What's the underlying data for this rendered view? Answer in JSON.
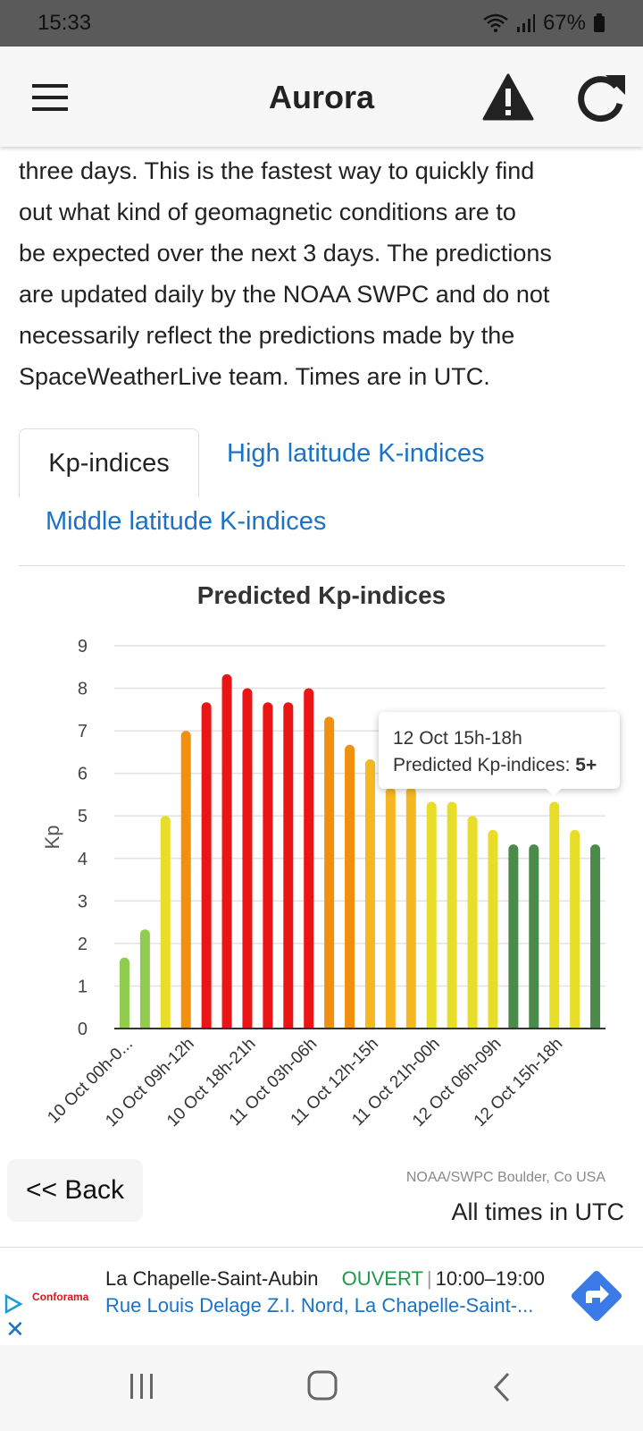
{
  "status_bar": {
    "time": "15:33",
    "battery": "67%"
  },
  "app_bar": {
    "title": "Aurora"
  },
  "intro": {
    "lines": [
      "three days. This is the fastest way to quickly find",
      "out what kind of geomagnetic conditions are to",
      "be expected over the next 3 days. The predictions",
      "are updated daily by the NOAA SWPC and do not",
      "necessarily reflect the predictions made by the",
      "SpaceWeatherLive team. Times are in UTC."
    ]
  },
  "tabs": [
    {
      "label": "Kp-indices"
    },
    {
      "label": "High latitude K-indices"
    },
    {
      "label": "Middle latitude K-indices"
    }
  ],
  "chart_data": {
    "type": "bar",
    "title": "Predicted Kp-indices",
    "ylabel": "Kp",
    "xlabel": "",
    "ylim": [
      0,
      9
    ],
    "yticks": [
      0,
      1,
      2,
      3,
      4,
      5,
      6,
      7,
      8,
      9
    ],
    "grid": true,
    "x_tick_labels": [
      "10 Oct 00h-0...",
      "10 Oct 09h-12h",
      "10 Oct 18h-21h",
      "11 Oct 03h-06h",
      "11 Oct 12h-15h",
      "11 Oct 21h-00h",
      "12 Oct 06h-09h",
      "12 Oct 15h-18h"
    ],
    "values": [
      1.67,
      2.33,
      5.0,
      7.0,
      7.67,
      8.33,
      8.0,
      7.67,
      7.67,
      8.0,
      7.33,
      6.67,
      6.33,
      5.67,
      5.67,
      5.33,
      5.33,
      5.0,
      4.67,
      4.33,
      4.33,
      5.33,
      4.67,
      4.33
    ],
    "colors": [
      "#8fcc4f",
      "#8fcc4f",
      "#e8de2a",
      "#f0900e",
      "#ec1515",
      "#ec1515",
      "#ec1515",
      "#ec1515",
      "#ec1515",
      "#ec1515",
      "#f0900e",
      "#f0900e",
      "#f5b822",
      "#f5b822",
      "#f5b822",
      "#e8de2a",
      "#e8de2a",
      "#e8de2a",
      "#e8de2a",
      "#4a8a4a",
      "#4a8a4a",
      "#e8de2a",
      "#e8de2a",
      "#4a8a4a"
    ],
    "tooltip": {
      "title": "12 Oct 15h-18h",
      "label": "Predicted Kp-indices:",
      "value": "5+"
    },
    "credits": "NOAA/SWPC Boulder, Co USA"
  },
  "times_note": "All times in UTC",
  "back_button": {
    "label": "<< Back"
  },
  "ad": {
    "logo": "Conforama",
    "place": "La Chapelle-Saint-Aubin",
    "status": "OUVERT",
    "hours": "10:00–19:00",
    "address": "Rue Louis Delage Z.I. Nord, La Chapelle-Saint-..."
  }
}
